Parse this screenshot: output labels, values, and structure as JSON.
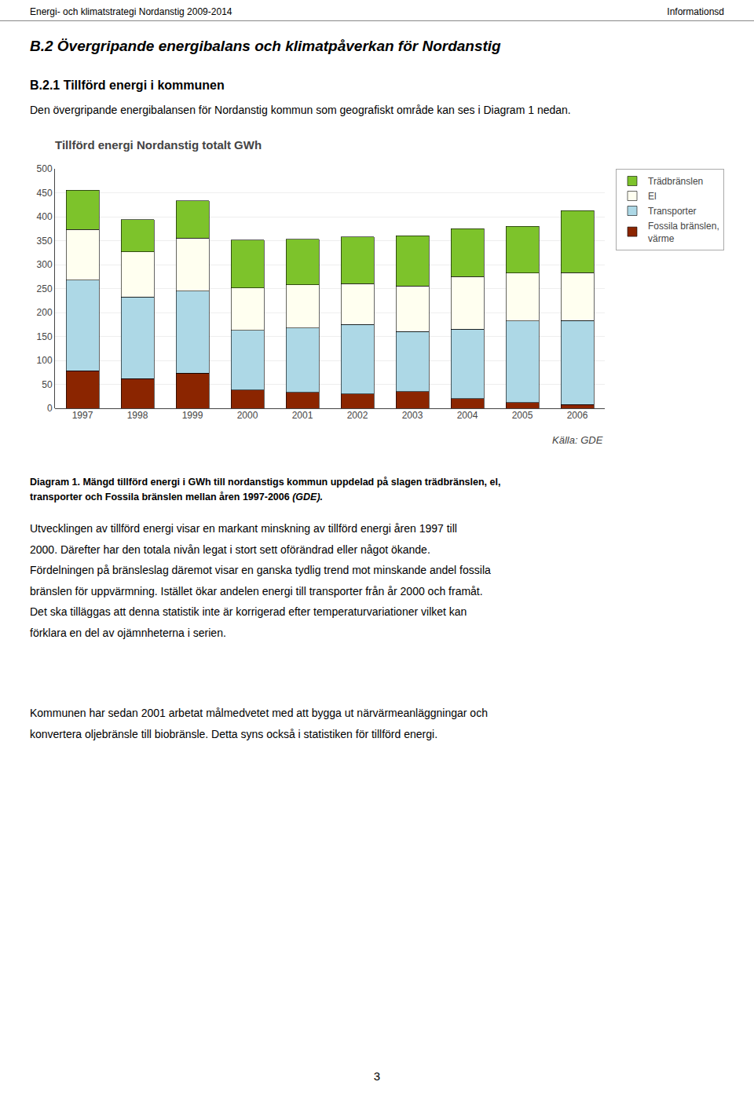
{
  "page_texts": {
    "header_left": "Energi- och klimatstrategi Nordanstig 2009-2014",
    "header_right": "Informationsd",
    "section_title": "B.2  Övergripande energibalans och klimatpåverkan för Nordanstig",
    "subsection_title": "B.2.1 Tillförd energi i kommunen",
    "intro_text": "Den övergripande energibalansen för Nordanstig kommun som geografiskt område kan ses i Diagram 1 nedan.",
    "caption_line_1": "Diagram 1. Mängd tillförd energi i GWh till nordanstigs kommun uppdelad på slagen trädbränslen, el,",
    "caption_line_2": "transporter och Fossila bränslen mellan åren 1997-2006 ",
    "caption_line_2_italic": "(GDE).",
    "body_paragraph_1": [
      "Utvecklingen av tillförd energi visar en markant minskning av tillförd energi åren 1997 till",
      "2000. Därefter har den totala nivån legat i stort sett oförändrad eller något ökande.",
      "Fördelningen på bränsleslag däremot visar en ganska tydlig trend mot minskande andel fossila",
      "bränslen för uppvärmning. Istället ökar andelen energi till transporter från år 2000 och framåt.",
      "Det ska tilläggas att denna statistik inte är korrigerad efter temperaturvariationer vilket kan",
      "förklara en del av ojämnheterna i serien."
    ],
    "body_paragraph_2": [
      "Kommunen har sedan 2001 arbetat målmedvetet med att bygga ut närvärmeanläggningar och",
      "konvertera oljebränsle till biobränsle. Detta syns också i statistiken för tillförd energi."
    ],
    "page_number": "3"
  },
  "chart_data": {
    "type": "bar",
    "stacked": true,
    "title": "Tillförd energi Nordanstig totalt GWh",
    "categories": [
      1997,
      1998,
      1999,
      2000,
      2001,
      2002,
      2003,
      2004,
      2005,
      2006
    ],
    "series": [
      {
        "name": "Fossila bränslen,\nvärme",
        "color": "#8B2500",
        "values": [
          78,
          62,
          73,
          38,
          33,
          30,
          35,
          20,
          12,
          8
        ]
      },
      {
        "name": "Transporter",
        "color": "#ADD8E6",
        "values": [
          190,
          170,
          172,
          125,
          135,
          145,
          125,
          145,
          170,
          175
        ]
      },
      {
        "name": "El",
        "color": "#FFFFF0",
        "values": [
          105,
          95,
          110,
          88,
          90,
          85,
          95,
          110,
          100,
          100
        ]
      },
      {
        "name": "Trädbränslen",
        "color": "#7DC32B",
        "values": [
          82,
          67,
          78,
          100,
          95,
          98,
          105,
          100,
          98,
          130
        ]
      }
    ],
    "ylim": [
      0,
      500
    ],
    "yticks": [
      0,
      50,
      100,
      150,
      200,
      250,
      300,
      350,
      400,
      450,
      500
    ],
    "grid": true,
    "legend": "right",
    "annotations": [
      "Källa: GDE"
    ]
  }
}
